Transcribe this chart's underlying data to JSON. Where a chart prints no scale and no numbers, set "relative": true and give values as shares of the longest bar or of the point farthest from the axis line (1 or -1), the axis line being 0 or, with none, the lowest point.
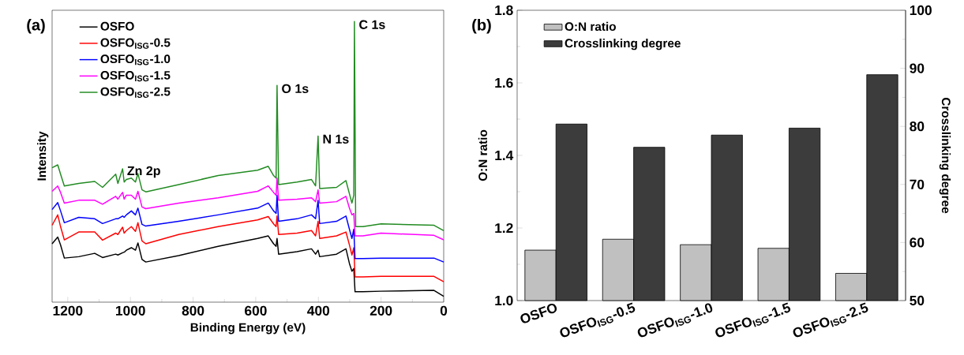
{
  "chart_data": [
    {
      "type": "line",
      "relative": true,
      "xlabel": "Binding Energy (eV)",
      "ylabel": "Intensity",
      "xlim": [
        1250,
        0
      ],
      "xticks": [
        1200,
        1000,
        800,
        600,
        400,
        200,
        0
      ],
      "legend": "top left",
      "annotations": [
        "(a)",
        {
          "text": "Zn 2p",
          "x": 1025,
          "y": 0.475
        },
        {
          "text": "O 1s",
          "x": 532,
          "y": 0.772
        },
        {
          "text": "N 1s",
          "x": 401,
          "y": 0.592
        },
        {
          "text": "C 1s",
          "x": 285,
          "y": 1.0
        }
      ],
      "x": [
        1250,
        1232,
        1223,
        1211,
        1165,
        1114,
        1089,
        1047,
        1040,
        1025,
        1020,
        1013,
        997,
        984,
        976,
        963,
        951,
        846,
        720,
        594,
        560,
        543,
        535,
        532,
        527,
        468,
        422,
        409,
        401,
        396,
        342,
        312,
        301,
        293,
        287,
        283,
        258,
        200,
        31,
        0
      ],
      "series": [
        {
          "name": "OSFO",
          "color": "#000000",
          "values": [
            0.208,
            0.232,
            0.204,
            0.157,
            0.162,
            0.174,
            0.159,
            0.171,
            0.168,
            0.176,
            0.178,
            0.185,
            0.194,
            0.185,
            0.211,
            0.152,
            0.143,
            0.166,
            0.199,
            0.227,
            0.236,
            0.208,
            0.199,
            0.227,
            0.171,
            0.18,
            0.19,
            0.171,
            0.185,
            0.162,
            0.171,
            0.19,
            0.138,
            0.11,
            0.12,
            0.037,
            0.037,
            0.039,
            0.042,
            0.021
          ]
        },
        {
          "name": "OSFO$_{ISG}$-0.5",
          "color": "#ff0000",
          "values": [
            0.274,
            0.311,
            0.269,
            0.222,
            0.25,
            0.25,
            0.221,
            0.246,
            0.241,
            0.267,
            0.246,
            0.255,
            0.269,
            0.252,
            0.283,
            0.218,
            0.208,
            0.241,
            0.269,
            0.293,
            0.305,
            0.279,
            0.269,
            0.307,
            0.241,
            0.246,
            0.255,
            0.236,
            0.288,
            0.227,
            0.236,
            0.25,
            0.204,
            0.168,
            0.194,
            0.09,
            0.09,
            0.092,
            0.092,
            0.073
          ]
        },
        {
          "name": "OSFO$_{ISG}$-1.0",
          "color": "#0000ff",
          "values": [
            0.33,
            0.355,
            0.325,
            0.283,
            0.302,
            0.297,
            0.28,
            0.297,
            0.297,
            0.307,
            0.302,
            0.311,
            0.325,
            0.311,
            0.335,
            0.277,
            0.271,
            0.288,
            0.311,
            0.335,
            0.353,
            0.325,
            0.316,
            0.381,
            0.288,
            0.297,
            0.311,
            0.297,
            0.363,
            0.28,
            0.288,
            0.307,
            0.26,
            0.227,
            0.26,
            0.155,
            0.155,
            0.157,
            0.157,
            0.143
          ]
        },
        {
          "name": "OSFO$_{ISG}$-1.5",
          "color": "#ff00ff",
          "values": [
            0.395,
            0.414,
            0.391,
            0.353,
            0.363,
            0.363,
            0.349,
            0.377,
            0.367,
            0.391,
            0.367,
            0.381,
            0.381,
            0.367,
            0.395,
            0.339,
            0.333,
            0.353,
            0.372,
            0.395,
            0.414,
            0.391,
            0.381,
            0.442,
            0.363,
            0.367,
            0.372,
            0.358,
            0.4,
            0.353,
            0.358,
            0.377,
            0.335,
            0.311,
            0.316,
            0.236,
            0.236,
            0.246,
            0.238,
            0.222
          ]
        },
        {
          "name": "OSFO$_{ISG}$-2.5",
          "color": "#228b22",
          "x": [
            1250,
            1232,
            1223,
            1211,
            1165,
            1114,
            1089,
            1047,
            1040,
            1025,
            1020,
            1013,
            997,
            984,
            976,
            963,
            951,
            846,
            720,
            594,
            560,
            543,
            535,
            532,
            527,
            468,
            422,
            409,
            401,
            396,
            342,
            312,
            301,
            293,
            287,
            285,
            281,
            258,
            200,
            31,
            0
          ],
          "values": [
            0.479,
            0.489,
            0.456,
            0.414,
            0.423,
            0.43,
            0.409,
            0.456,
            0.423,
            0.475,
            0.428,
            0.437,
            0.442,
            0.428,
            0.458,
            0.4,
            0.393,
            0.419,
            0.451,
            0.47,
            0.484,
            0.451,
            0.442,
            0.772,
            0.419,
            0.428,
            0.437,
            0.414,
            0.592,
            0.405,
            0.409,
            0.433,
            0.386,
            0.353,
            0.381,
            1.0,
            0.269,
            0.269,
            0.279,
            0.274,
            0.255
          ]
        }
      ]
    },
    {
      "type": "bar",
      "ylabel": "O:N ratio",
      "y2label": "Crosslinking degree",
      "legend": "top left",
      "annotations": [
        "(b)"
      ],
      "categories": [
        "OSFO",
        "OSFO$_{ISG}$-0.5",
        "OSFO$_{ISG}$-1.0",
        "OSFO$_{ISG}$-1.5",
        "OSFO$_{ISG}$-2.5"
      ],
      "ylim": [
        1.0,
        1.8
      ],
      "yticks": [
        {
          "value": 1.0,
          "label": "1.0"
        },
        1.2,
        1.4,
        1.6,
        1.8
      ],
      "y2lim": [
        50,
        100
      ],
      "y2ticks": [
        50,
        60,
        70,
        80,
        90,
        100
      ],
      "series": [
        {
          "name": "O:N ratio",
          "color": "#c0c0c0",
          "values": [
            1.139,
            1.169,
            1.154,
            1.144,
            1.075
          ]
        },
        {
          "name": "Crosslinking degree",
          "color": "#3c3c3c",
          "axis": "y2",
          "values": [
            80.4,
            76.4,
            78.5,
            79.7,
            88.9
          ]
        }
      ]
    }
  ]
}
